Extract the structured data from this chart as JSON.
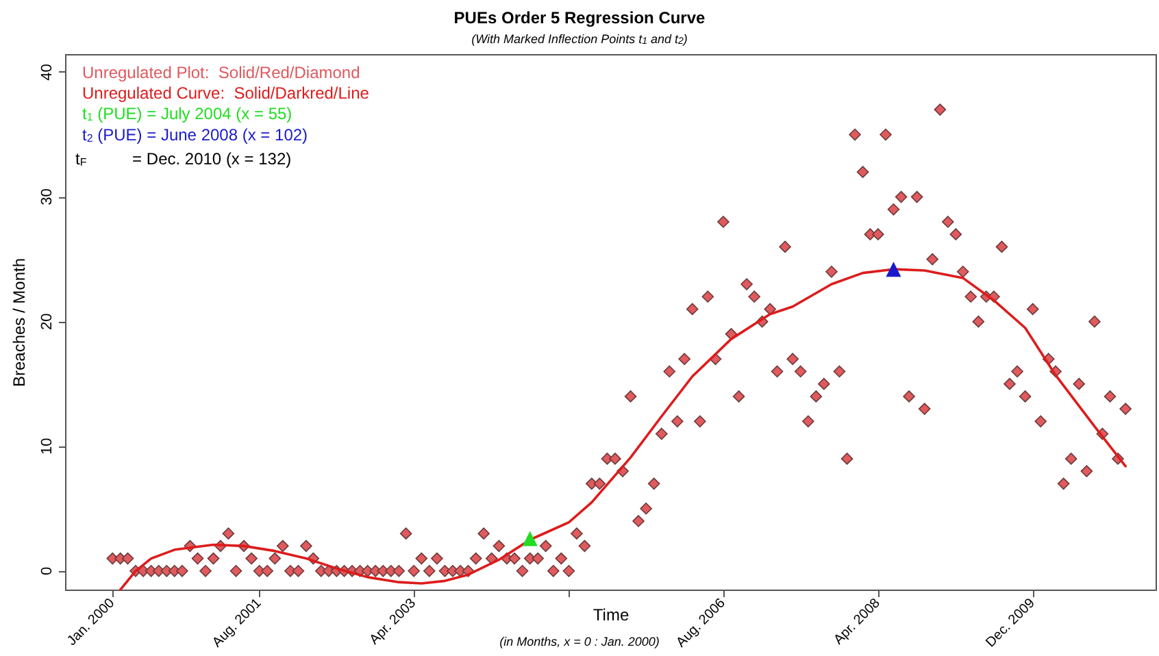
{
  "chart_data": {
    "type": "scatter",
    "title": "PUEs Order 5 Regression Curve",
    "subtitle": "(With Marked Inflection Points t$_{1}$ and t$_{2}$)",
    "xlabel": "Time",
    "ylabel": "Breaches / Month",
    "annotations": [
      "t$_{F}$          = Dec. 2010 (x = 132)",
      "(in Months, x = 0 : Jan. 2000)"
    ],
    "xlim": [
      "1999-07",
      "2011-04"
    ],
    "xticks": [
      {
        "value": "2000-01",
        "label": "Jan. 2000"
      },
      {
        "value": "2001-08",
        "label": "Aug. 2001"
      },
      {
        "value": "2003-04",
        "label": "Apr. 2003"
      },
      {
        "value": "2004-12",
        "label": null
      },
      {
        "value": "2006-08",
        "label": "Aug. 2006"
      },
      {
        "value": "2008-04",
        "label": "Apr. 2008"
      },
      {
        "value": "2009-12",
        "label": "Dec. 2009"
      }
    ],
    "ylim": [
      -1.55,
      41.4
    ],
    "yticks": [
      0,
      10,
      20,
      30,
      40
    ],
    "legend": "top left",
    "x": [
      "2000-01",
      "2000-02",
      "2000-03",
      "2000-04",
      "2000-05",
      "2000-06",
      "2000-07",
      "2000-08",
      "2000-09",
      "2000-10",
      "2000-11",
      "2000-12",
      "2001-01",
      "2001-02",
      "2001-03",
      "2001-04",
      "2001-05",
      "2001-06",
      "2001-07",
      "2001-08",
      "2001-09",
      "2001-10",
      "2001-11",
      "2001-12",
      "2002-01",
      "2002-02",
      "2002-03",
      "2002-04",
      "2002-05",
      "2002-06",
      "2002-07",
      "2002-08",
      "2002-09",
      "2002-10",
      "2002-11",
      "2002-12",
      "2003-01",
      "2003-02",
      "2003-03",
      "2003-04",
      "2003-05",
      "2003-06",
      "2003-07",
      "2003-08",
      "2003-09",
      "2003-10",
      "2003-11",
      "2003-12",
      "2004-01",
      "2004-02",
      "2004-03",
      "2004-04",
      "2004-05",
      "2004-06",
      "2004-07",
      "2004-08",
      "2004-09",
      "2004-10",
      "2004-11",
      "2004-12",
      "2005-01",
      "2005-02",
      "2005-03",
      "2005-04",
      "2005-05",
      "2005-06",
      "2005-07",
      "2005-08",
      "2005-09",
      "2005-10",
      "2005-11",
      "2005-12",
      "2006-01",
      "2006-02",
      "2006-03",
      "2006-04",
      "2006-05",
      "2006-06",
      "2006-07",
      "2006-08",
      "2006-09",
      "2006-10",
      "2006-11",
      "2006-12",
      "2007-01",
      "2007-02",
      "2007-03",
      "2007-04",
      "2007-05",
      "2007-06",
      "2007-07",
      "2007-08",
      "2007-09",
      "2007-10",
      "2007-11",
      "2007-12",
      "2008-01",
      "2008-02",
      "2008-03",
      "2008-04",
      "2008-05",
      "2008-06",
      "2008-07",
      "2008-08",
      "2008-09",
      "2008-10",
      "2008-11",
      "2008-12",
      "2009-01",
      "2009-02",
      "2009-03",
      "2009-04",
      "2009-05",
      "2009-06",
      "2009-07",
      "2009-08",
      "2009-09",
      "2009-10",
      "2009-11",
      "2009-12",
      "2010-01",
      "2010-02",
      "2010-03",
      "2010-04",
      "2010-05",
      "2010-06",
      "2010-07",
      "2010-08",
      "2010-09",
      "2010-10",
      "2010-11",
      "2010-12"
    ],
    "series": [
      {
        "name": "Unregulated Plot:  Solid/Red/Diamond",
        "marker": "diamond",
        "color": "#e05a5e",
        "values": [
          1,
          1,
          1,
          0,
          0,
          0,
          0,
          0,
          0,
          0,
          2,
          1,
          0,
          1,
          2,
          3,
          0,
          2,
          1,
          0,
          0,
          1,
          2,
          0,
          0,
          2,
          1,
          0,
          0,
          0,
          0,
          0,
          0,
          0,
          0,
          0,
          0,
          0,
          3,
          0,
          1,
          0,
          1,
          0,
          0,
          0,
          0,
          1,
          3,
          1,
          2,
          1,
          1,
          0,
          1,
          1,
          2,
          0,
          1,
          0,
          3,
          2,
          7,
          7,
          9,
          9,
          8,
          14,
          4,
          5,
          7,
          11,
          16,
          12,
          17,
          21,
          12,
          22,
          17,
          28,
          19,
          14,
          23,
          22,
          20,
          21,
          16,
          26,
          17,
          16,
          12,
          14,
          15,
          24,
          16,
          9,
          35,
          32,
          27,
          27,
          35,
          29,
          30,
          14,
          30,
          13,
          25,
          37,
          28,
          27,
          24,
          22,
          20,
          22,
          22,
          26,
          15,
          16,
          14,
          21,
          12,
          17,
          16,
          7,
          9,
          15,
          8,
          20,
          11,
          14,
          9,
          13
        ]
      },
      {
        "name": "Unregulated Curve:  Solid/Darkred/Line",
        "type": "line",
        "marker": "none",
        "line_style": "solid",
        "color": "#dd1c1c",
        "x": [
          "2000-02",
          "2000-04",
          "2000-06",
          "2000-09",
          "2001-02",
          "2001-06",
          "2001-10",
          "2002-02",
          "2002-06",
          "2002-10",
          "2003-02",
          "2003-05",
          "2003-08",
          "2003-11",
          "2004-03",
          "2004-07",
          "2004-12",
          "2005-03",
          "2005-08",
          "2005-12",
          "2006-04",
          "2006-09",
          "2007-02",
          "2007-05",
          "2007-10",
          "2008-02",
          "2008-06",
          "2008-10",
          "2009-03",
          "2009-07",
          "2009-11",
          "2010-03",
          "2010-08",
          "2010-12"
        ],
        "values": [
          -1.5,
          0,
          1,
          1.7,
          2.1,
          2,
          1.6,
          1,
          0.2,
          -0.5,
          -0.9,
          -1,
          -0.8,
          -0.3,
          0.9,
          2.5,
          3.9,
          5.5,
          9.1,
          12.4,
          15.6,
          18.6,
          20.6,
          21.2,
          23,
          23.9,
          24.2,
          24.1,
          23.5,
          21.7,
          19.5,
          15.7,
          11.6,
          8.4
        ]
      },
      {
        "name": "t$_{1}$ (PUE) = July 2004 (x = 55)",
        "marker": "triangle",
        "color": "#22dd22",
        "x": [
          "2004-07"
        ],
        "values": [
          2.6
        ]
      },
      {
        "name": "t$_{2}$ (PUE) = June 2008 (x = 102)",
        "marker": "triangle",
        "color": "#1a1acc",
        "x": [
          "2008-06"
        ],
        "values": [
          24.2
        ]
      }
    ]
  }
}
